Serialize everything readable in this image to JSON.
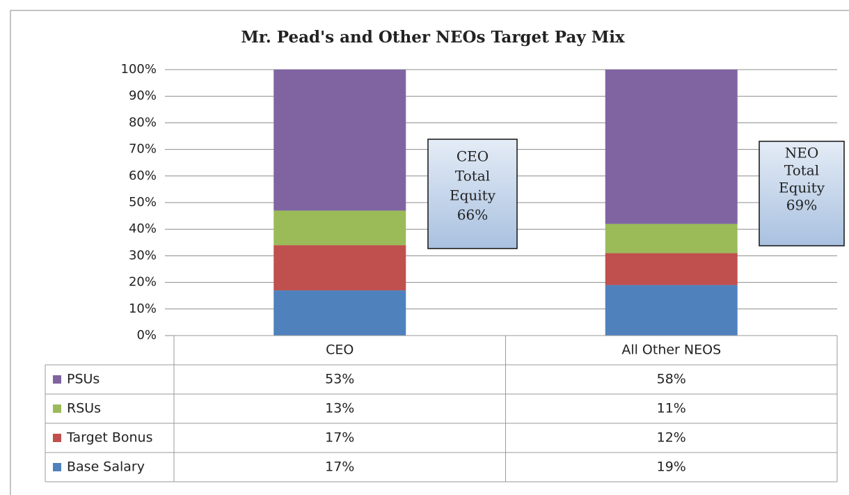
{
  "chart_data": {
    "type": "stacked_bar",
    "title": "Mr. Pead's and Other NEOs Target Pay Mix",
    "categories": [
      "CEO",
      "All Other NEOS"
    ],
    "series": [
      {
        "name": "Base Salary",
        "color": "#4f81bd",
        "values": [
          17,
          19
        ],
        "value_labels": [
          "17%",
          "19%"
        ]
      },
      {
        "name": "Target Bonus",
        "color": "#c0504d",
        "values": [
          17,
          12
        ],
        "value_labels": [
          "17%",
          "12%"
        ]
      },
      {
        "name": "RSUs",
        "color": "#9bbb59",
        "values": [
          13,
          11
        ],
        "value_labels": [
          "13%",
          "11%"
        ]
      },
      {
        "name": "PSUs",
        "color": "#8064a2",
        "values": [
          53,
          58
        ],
        "value_labels": [
          "53%",
          "58%"
        ]
      }
    ],
    "ylim": [
      0,
      100
    ],
    "yticks": [
      {
        "value": 0,
        "label": "0%"
      },
      {
        "value": 10,
        "label": "10%"
      },
      {
        "value": 20,
        "label": "20%"
      },
      {
        "value": 30,
        "label": "30%"
      },
      {
        "value": 40,
        "label": "40%"
      },
      {
        "value": 50,
        "label": "50%"
      },
      {
        "value": 60,
        "label": "60%"
      },
      {
        "value": 70,
        "label": "70%"
      },
      {
        "value": 80,
        "label": "80%"
      },
      {
        "value": 90,
        "label": "90%"
      },
      {
        "value": 100,
        "label": "100%"
      }
    ],
    "grid": true,
    "annotations": [
      {
        "lines": [
          "CEO",
          "Total",
          "Equity",
          "66%"
        ]
      },
      {
        "lines": [
          "NEO",
          "Total",
          "Equity",
          "69%"
        ]
      }
    ]
  }
}
